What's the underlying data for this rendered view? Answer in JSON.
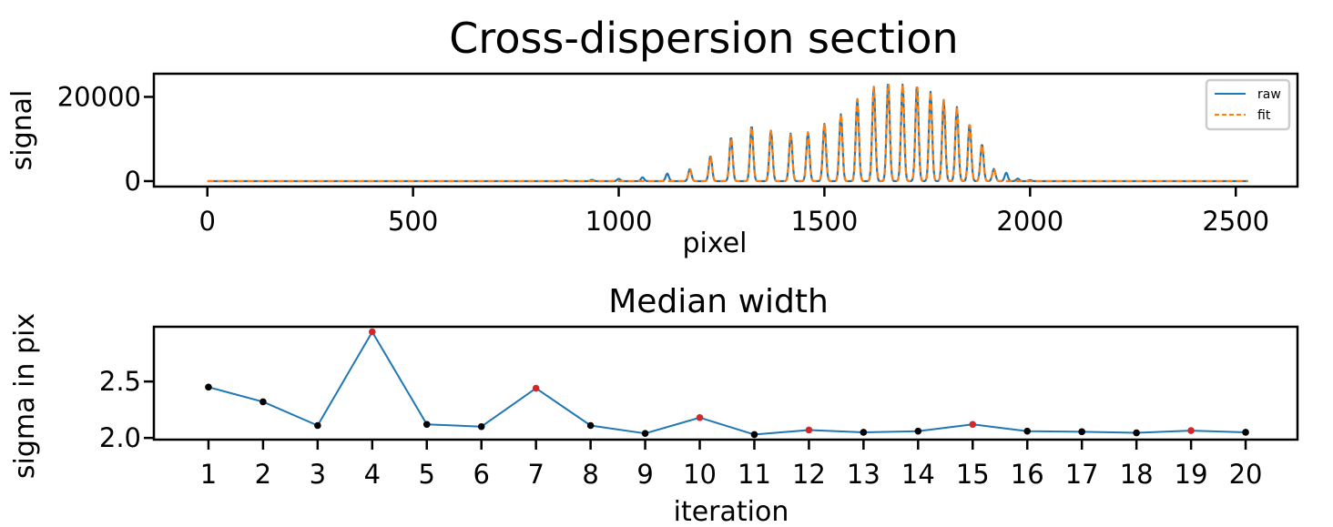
{
  "figure": {
    "title": "Cross-dispersion section"
  },
  "chart_data": [
    {
      "type": "line",
      "title": "",
      "xlabel": "pixel",
      "ylabel": "signal",
      "xlim": [
        -130,
        2650
      ],
      "ylim": [
        -1300,
        25500
      ],
      "xticks": [
        0,
        500,
        1000,
        1500,
        2000,
        2500
      ],
      "yticks": [
        0,
        20000
      ],
      "legend": {
        "position": "top-right",
        "entries": [
          "raw",
          "fit"
        ]
      },
      "series": [
        {
          "name": "raw",
          "color": "#1f77b4",
          "style": "solid",
          "range": [
            0,
            2530
          ],
          "peak_width": 3.8,
          "peaks": [
            [
              870,
              150
            ],
            [
              935,
              300
            ],
            [
              1000,
              550
            ],
            [
              1058,
              900
            ],
            [
              1118,
              1800
            ],
            [
              1173,
              2900
            ],
            [
              1223,
              6000
            ],
            [
              1273,
              10500
            ],
            [
              1323,
              13200
            ],
            [
              1370,
              12000
            ],
            [
              1418,
              11300
            ],
            [
              1460,
              11600
            ],
            [
              1500,
              13600
            ],
            [
              1540,
              15900
            ],
            [
              1580,
              19500
            ],
            [
              1620,
              22400
            ],
            [
              1655,
              23700
            ],
            [
              1690,
              22900
            ],
            [
              1725,
              23000
            ],
            [
              1758,
              21200
            ],
            [
              1790,
              19300
            ],
            [
              1822,
              17600
            ],
            [
              1853,
              13700
            ],
            [
              1883,
              8800
            ],
            [
              1912,
              2900
            ],
            [
              1942,
              2000
            ],
            [
              1970,
              600
            ],
            [
              2000,
              250
            ]
          ]
        },
        {
          "name": "fit",
          "color": "#ff7f0e",
          "style": "dashed",
          "range": [
            0,
            2530
          ],
          "peak_width": 3.8,
          "peaks": [
            [
              1173,
              2900
            ],
            [
              1223,
              6000
            ],
            [
              1273,
              10500
            ],
            [
              1323,
              13200
            ],
            [
              1370,
              12000
            ],
            [
              1418,
              11300
            ],
            [
              1460,
              11600
            ],
            [
              1500,
              13600
            ],
            [
              1540,
              15900
            ],
            [
              1580,
              19500
            ],
            [
              1620,
              22400
            ],
            [
              1655,
              23700
            ],
            [
              1690,
              22900
            ],
            [
              1725,
              23000
            ],
            [
              1758,
              21200
            ],
            [
              1790,
              19300
            ],
            [
              1822,
              17600
            ],
            [
              1853,
              13700
            ],
            [
              1883,
              8800
            ],
            [
              1912,
              2900
            ]
          ]
        }
      ]
    },
    {
      "type": "line",
      "title": "Median width",
      "xlabel": "iteration",
      "ylabel": "sigma in pix",
      "xlim": [
        0.0,
        20.95
      ],
      "ylim": [
        1.985,
        2.985
      ],
      "xticks": [
        1,
        2,
        3,
        4,
        5,
        6,
        7,
        8,
        9,
        10,
        11,
        12,
        13,
        14,
        15,
        16,
        17,
        18,
        19,
        20
      ],
      "yticks": [
        2.0,
        2.5
      ],
      "ytick_labels": [
        "2.0",
        "2.5"
      ],
      "line_color": "#1f77b4",
      "marker_colors": {
        "normal": "#000000",
        "highlight": "#d62728"
      },
      "x": [
        1,
        2,
        3,
        4,
        5,
        6,
        7,
        8,
        9,
        10,
        11,
        12,
        13,
        14,
        15,
        16,
        17,
        18,
        19,
        20
      ],
      "y": [
        2.45,
        2.32,
        2.11,
        2.94,
        2.12,
        2.1,
        2.44,
        2.11,
        2.04,
        2.18,
        2.03,
        2.07,
        2.05,
        2.06,
        2.12,
        2.06,
        2.055,
        2.045,
        2.065,
        2.05
      ],
      "highlight": [
        false,
        false,
        false,
        true,
        false,
        false,
        true,
        false,
        false,
        true,
        false,
        true,
        false,
        false,
        true,
        false,
        false,
        false,
        true,
        false
      ]
    }
  ]
}
